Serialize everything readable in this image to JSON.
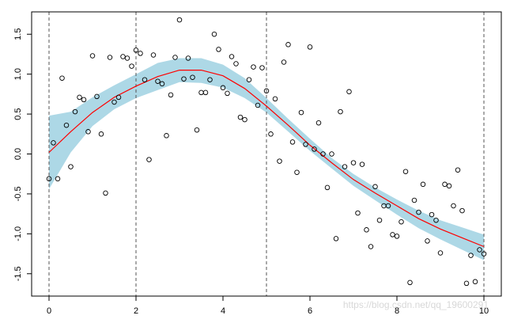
{
  "chart_data": {
    "type": "scatter",
    "title": "",
    "xlabel": "",
    "ylabel": "",
    "xlim": [
      -0.4,
      10.4
    ],
    "ylim": [
      -1.78,
      1.78
    ],
    "x_ticks": [
      0,
      2,
      4,
      6,
      8,
      10
    ],
    "x_tick_labels": [
      "0",
      "2",
      "4",
      "6",
      "8",
      "10"
    ],
    "y_ticks": [
      -1.5,
      -1.0,
      -0.5,
      0.0,
      0.5,
      1.0,
      1.5
    ],
    "y_tick_labels": [
      "-1.5",
      "-1.0",
      "-0.5",
      "0.0",
      "0.5",
      "1.0",
      "1.5"
    ],
    "grid": false,
    "legend": "none",
    "knots": [
      0,
      2,
      5,
      10
    ],
    "colors": {
      "band": "#add8e6",
      "fit": "#ff0000",
      "points": "#000000",
      "knots": "#555555"
    },
    "points": {
      "x": [
        0,
        0.1,
        0.2,
        0.3,
        0.4,
        0.5,
        0.6,
        0.7,
        0.8,
        0.9,
        1.0,
        1.1,
        1.2,
        1.3,
        1.4,
        1.5,
        1.6,
        1.7,
        1.8,
        1.9,
        2.0,
        2.1,
        2.2,
        2.3,
        2.4,
        2.5,
        2.6,
        2.7,
        2.8,
        2.9,
        3.0,
        3.1,
        3.2,
        3.3,
        3.4,
        3.5,
        3.6,
        3.7,
        3.8,
        3.9,
        4.0,
        4.1,
        4.2,
        4.3,
        4.4,
        4.5,
        4.6,
        4.7,
        4.8,
        4.9,
        5.0,
        5.1,
        5.2,
        5.3,
        5.4,
        5.5,
        5.6,
        5.7,
        5.8,
        5.9,
        6.0,
        6.1,
        6.2,
        6.3,
        6.4,
        6.5,
        6.6,
        6.7,
        6.8,
        6.9,
        7.0,
        7.1,
        7.2,
        7.3,
        7.4,
        7.5,
        7.6,
        7.7,
        7.8,
        7.9,
        8.0,
        8.1,
        8.2,
        8.3,
        8.4,
        8.5,
        8.6,
        8.7,
        8.8,
        8.9,
        9.0,
        9.1,
        9.2,
        9.3,
        9.4,
        9.5,
        9.6,
        9.7,
        9.8,
        9.9,
        10.0
      ],
      "y": [
        -0.31,
        0.14,
        -0.31,
        0.95,
        0.36,
        -0.16,
        0.53,
        0.71,
        0.68,
        0.28,
        1.23,
        0.72,
        0.25,
        -0.49,
        1.21,
        0.65,
        0.71,
        1.22,
        1.2,
        1.1,
        1.3,
        1.26,
        0.93,
        -0.07,
        1.24,
        0.91,
        0.88,
        0.23,
        0.74,
        1.21,
        1.68,
        0.94,
        1.2,
        0.96,
        0.3,
        0.77,
        0.77,
        0.93,
        1.5,
        1.31,
        0.83,
        0.76,
        1.22,
        1.13,
        0.46,
        0.43,
        0.93,
        1.09,
        0.61,
        1.08,
        0.79,
        0.25,
        0.69,
        -0.09,
        1.15,
        1.37,
        0.15,
        -0.23,
        0.52,
        0.12,
        1.34,
        0.06,
        0.39,
        0.0,
        -0.42,
        0.0,
        -1.06,
        0.53,
        -0.16,
        0.78,
        -0.11,
        -0.74,
        -0.13,
        -0.95,
        -1.16,
        -0.41,
        -0.83,
        -0.65,
        -0.65,
        -1.01,
        -1.03,
        -0.85,
        -0.22,
        -1.61,
        -0.58,
        -0.73,
        -0.38,
        -1.09,
        -0.76,
        -0.83,
        -1.24,
        -0.38,
        -0.4,
        -0.65,
        -0.2,
        -0.71,
        -1.62,
        -1.27,
        -1.6,
        -1.2,
        -1.25
      ]
    },
    "fit": {
      "x": [
        0,
        0.5,
        1.0,
        1.5,
        2.0,
        2.5,
        3.0,
        3.5,
        4.0,
        4.5,
        5.0,
        5.5,
        6.0,
        6.5,
        7.0,
        7.5,
        8.0,
        8.5,
        9.0,
        9.5,
        10.0
      ],
      "y": [
        0.02,
        0.28,
        0.52,
        0.71,
        0.85,
        0.97,
        1.05,
        1.05,
        0.98,
        0.82,
        0.6,
        0.36,
        0.11,
        -0.11,
        -0.32,
        -0.49,
        -0.65,
        -0.81,
        -0.94,
        -1.05,
        -1.16
      ]
    },
    "band": {
      "x": [
        0,
        0.5,
        1.0,
        1.5,
        2.0,
        2.5,
        3.0,
        3.5,
        4.0,
        4.5,
        5.0,
        5.5,
        6.0,
        6.5,
        7.0,
        7.5,
        8.0,
        8.5,
        9.0,
        9.5,
        10.0
      ],
      "upper": [
        0.48,
        0.53,
        0.71,
        0.86,
        1.0,
        1.14,
        1.2,
        1.2,
        1.12,
        0.95,
        0.7,
        0.44,
        0.19,
        -0.05,
        -0.25,
        -0.42,
        -0.57,
        -0.71,
        -0.83,
        -0.92,
        -1.01
      ],
      "lower": [
        -0.44,
        0.02,
        0.35,
        0.56,
        0.7,
        0.8,
        0.9,
        0.89,
        0.83,
        0.7,
        0.52,
        0.28,
        0.04,
        -0.18,
        -0.4,
        -0.58,
        -0.76,
        -0.93,
        -1.07,
        -1.2,
        -1.33
      ]
    }
  },
  "watermark": "https://blog.csdn.net/qq_19600291"
}
